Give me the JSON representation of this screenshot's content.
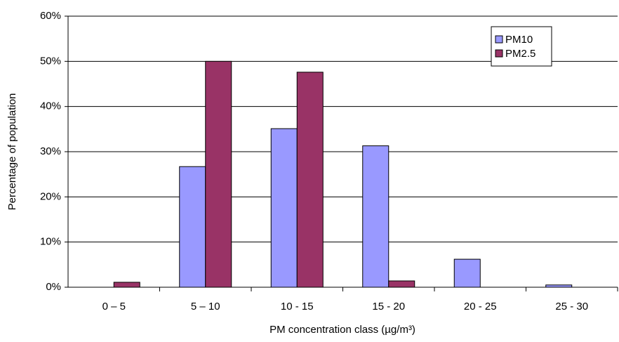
{
  "chart_data": {
    "type": "bar",
    "xlabel": "PM concentration class (µg/m³)",
    "ylabel": "Percentage of population",
    "categories": [
      "0 – 5",
      "5 – 10",
      "10 - 15",
      "15 - 20",
      "20 - 25",
      "25 - 30"
    ],
    "series": [
      {
        "name": "PM10",
        "color": "#9999ff",
        "values": [
          0,
          26.7,
          35.1,
          31.3,
          6.2,
          0.5
        ]
      },
      {
        "name": "PM2.5",
        "color": "#993366",
        "values": [
          1.1,
          50,
          47.6,
          1.4,
          0,
          0
        ]
      }
    ],
    "ylim": [
      0,
      60
    ],
    "yticks": [
      {
        "value": 0,
        "label": "0%"
      },
      {
        "value": 10,
        "label": "10%"
      },
      {
        "value": 20,
        "label": "20%"
      },
      {
        "value": 30,
        "label": "30%"
      },
      {
        "value": 40,
        "label": "40%"
      },
      {
        "value": 50,
        "label": "50%"
      },
      {
        "value": 60,
        "label": "60%"
      }
    ],
    "grid": true,
    "legend": "upper-right"
  }
}
